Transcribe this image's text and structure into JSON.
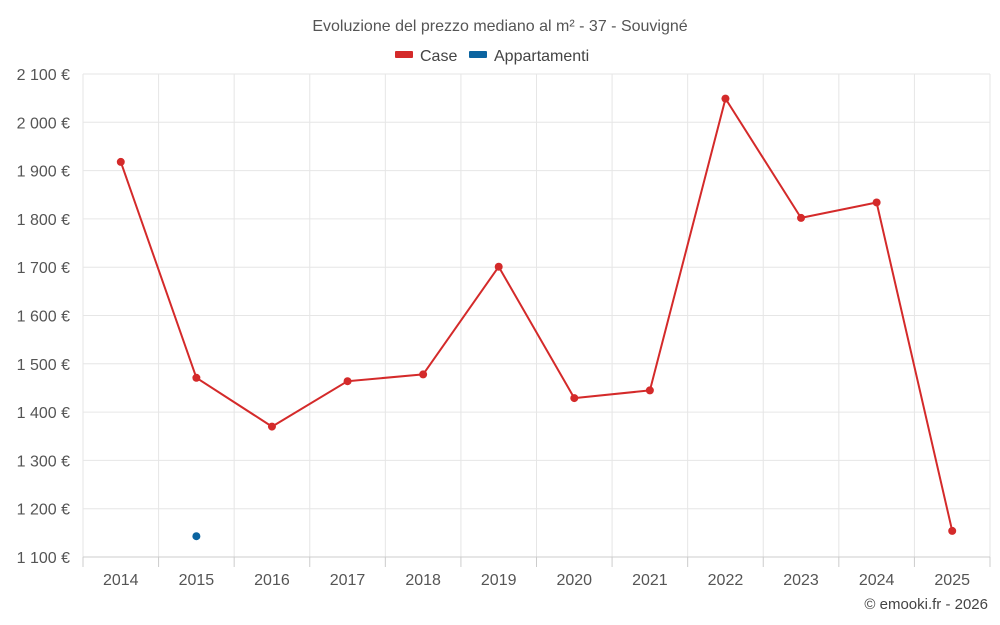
{
  "chart_data": {
    "type": "line",
    "title": "Evoluzione del prezzo mediano al m² - 37 - Souvigné",
    "xlabel": "",
    "ylabel": "",
    "categories": [
      "2014",
      "2015",
      "2016",
      "2017",
      "2018",
      "2019",
      "2020",
      "2021",
      "2022",
      "2023",
      "2024",
      "2025"
    ],
    "ylim": [
      1100,
      2100
    ],
    "yticks": [
      1100,
      1200,
      1300,
      1400,
      1500,
      1600,
      1700,
      1800,
      1900,
      2000,
      2100
    ],
    "ytick_labels": [
      "1 100 €",
      "1 200 €",
      "1 300 €",
      "1 400 €",
      "1 500 €",
      "1 600 €",
      "1 700 €",
      "1 800 €",
      "1 900 €",
      "2 000 €",
      "2 100 €"
    ],
    "grid": true,
    "legend_position": "top-center",
    "series": [
      {
        "name": "Case",
        "color": "#d42a2a",
        "values": [
          1918,
          1471,
          1370,
          1464,
          1478,
          1701,
          1429,
          1445,
          2049,
          1802,
          1834,
          1154
        ]
      },
      {
        "name": "Appartamenti",
        "color": "#0b64a0",
        "values": [
          null,
          1143,
          null,
          null,
          null,
          null,
          null,
          null,
          null,
          null,
          null,
          null
        ]
      }
    ]
  },
  "credit": "© emooki.fr - 2026"
}
